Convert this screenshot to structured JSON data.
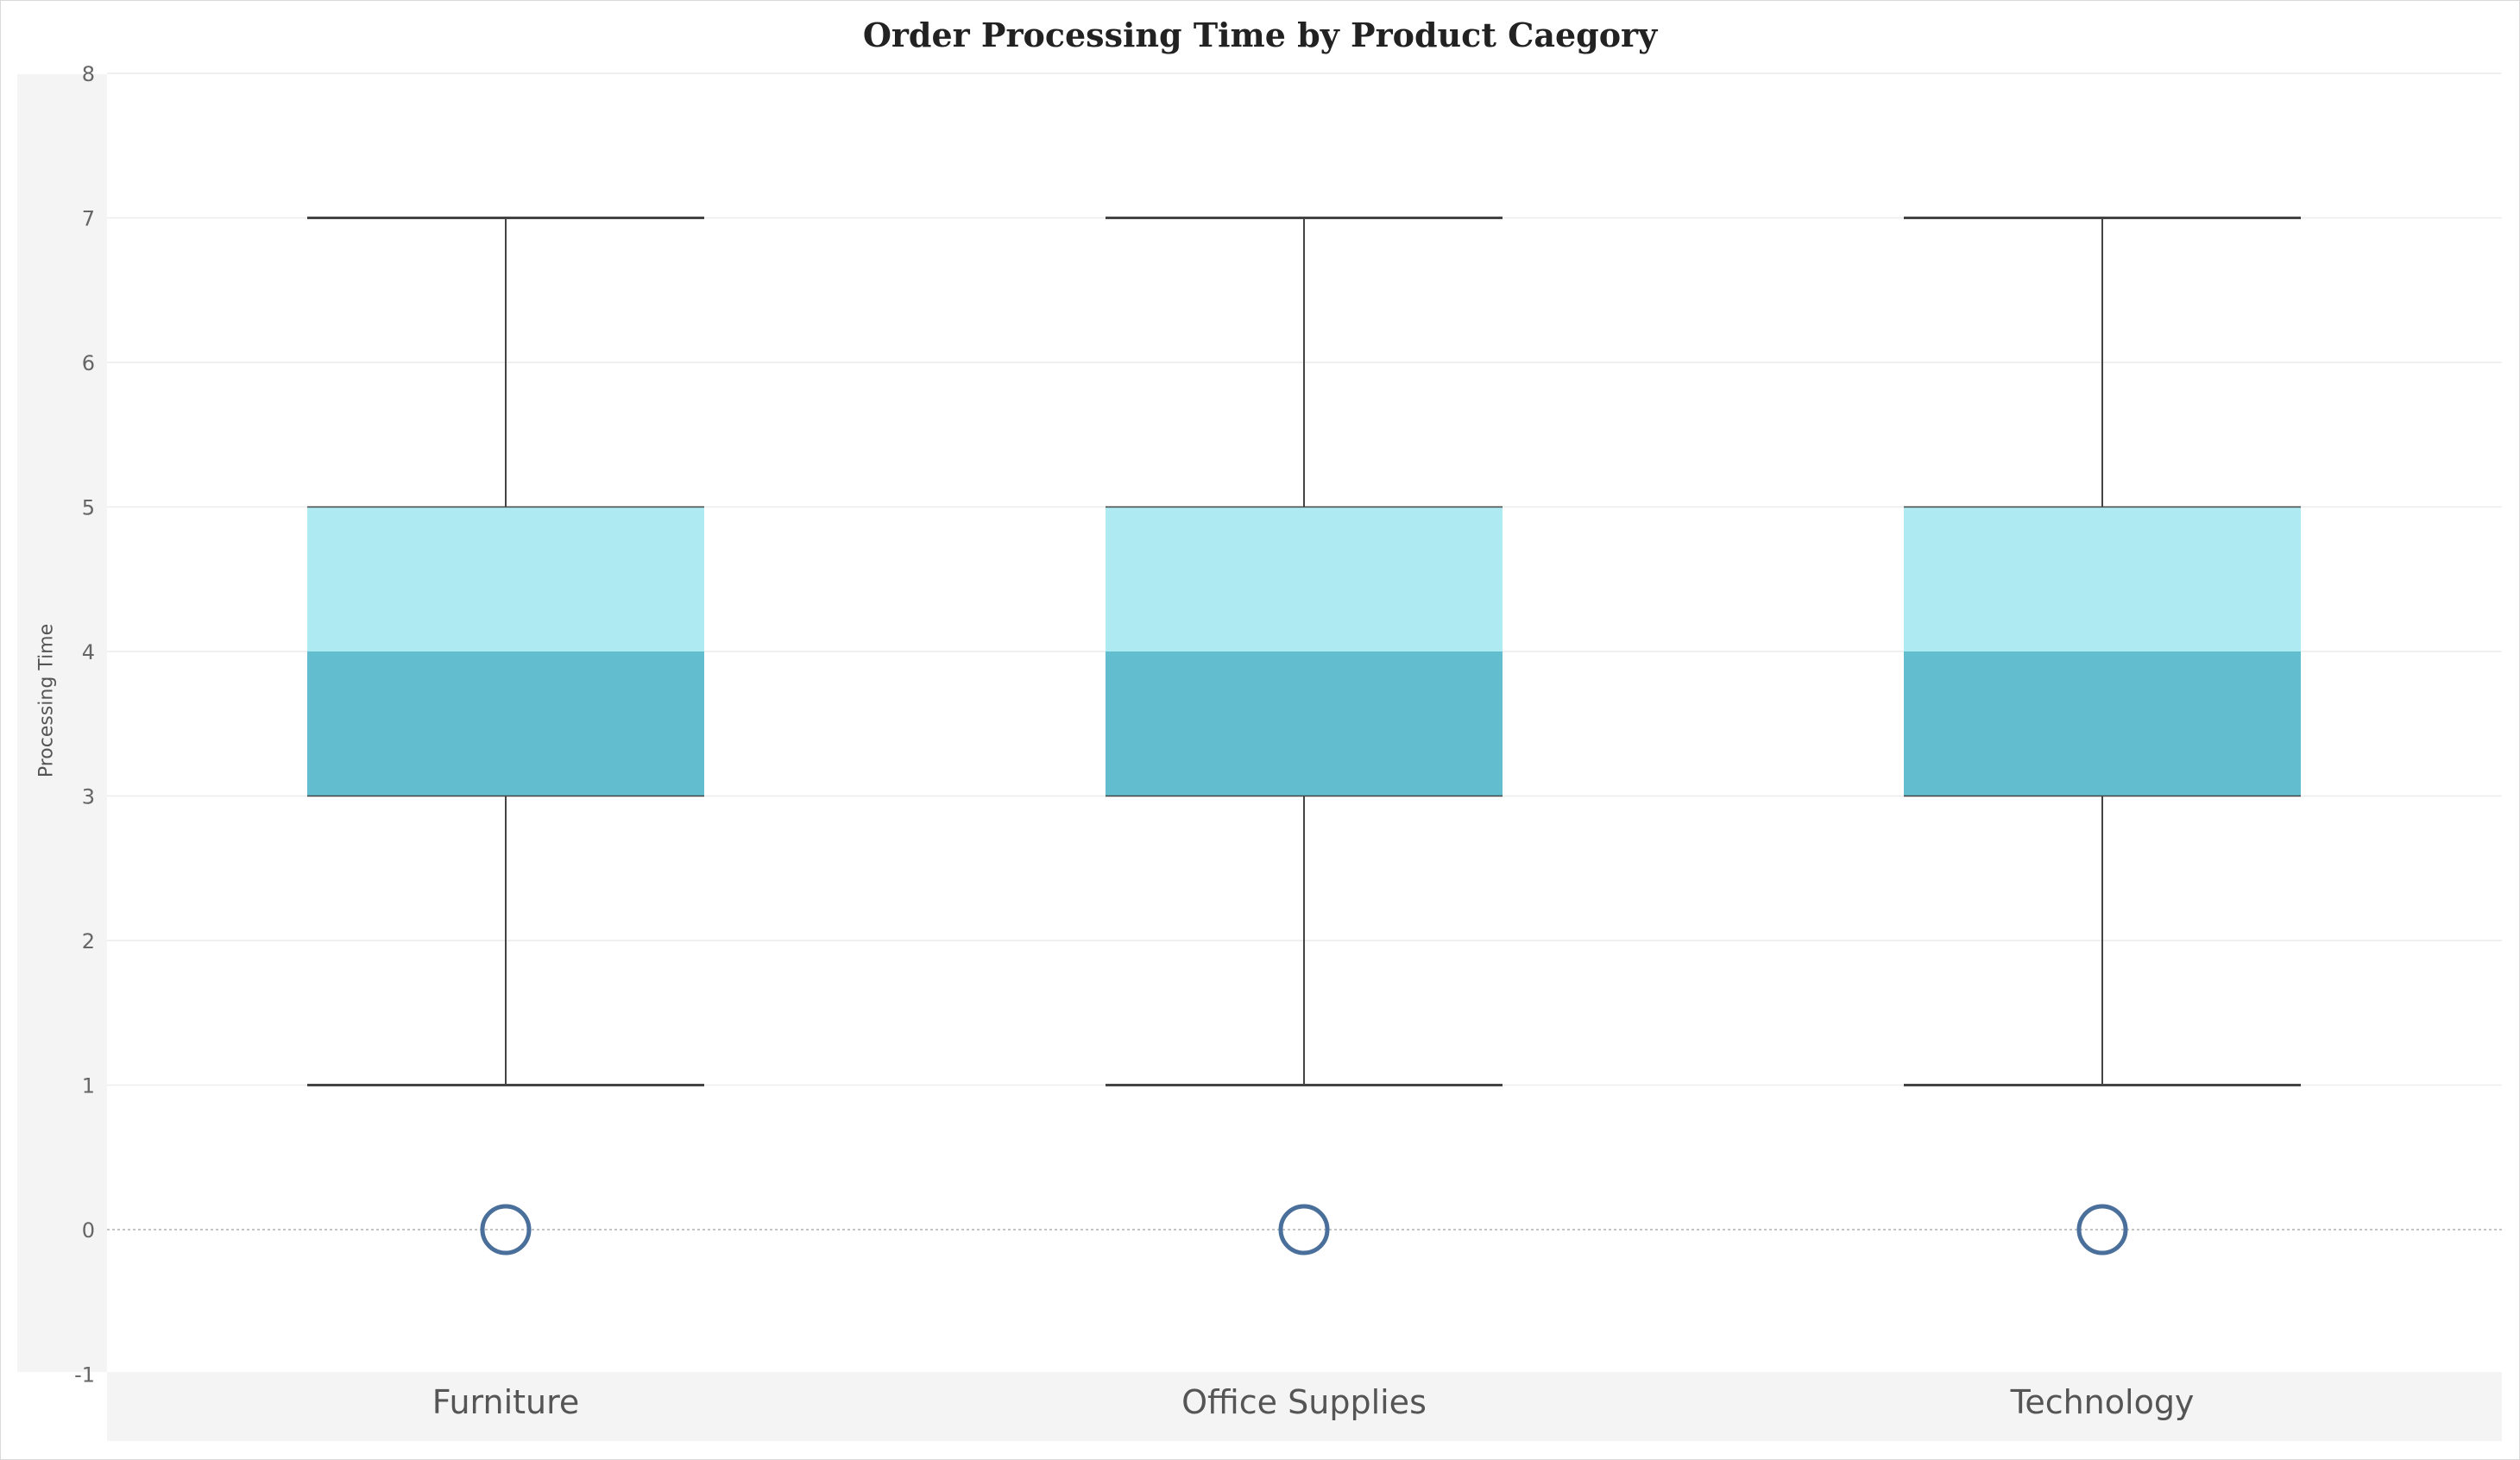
{
  "chart_data": {
    "type": "box",
    "title": "Order Processing Time by Product Caegory",
    "xlabel": "",
    "ylabel": "Processing Time",
    "ylim": [
      -1,
      8
    ],
    "yticks": [
      -1,
      0,
      1,
      2,
      3,
      4,
      5,
      6,
      7,
      8
    ],
    "grid": true,
    "categories": [
      "Furniture",
      "Office Supplies",
      "Technology"
    ],
    "boxes": [
      {
        "category": "Furniture",
        "whisker_low": 1,
        "q1": 3,
        "median": 4,
        "q3": 5,
        "whisker_high": 7,
        "outliers": [
          0
        ]
      },
      {
        "category": "Office Supplies",
        "whisker_low": 1,
        "q1": 3,
        "median": 4,
        "q3": 5,
        "whisker_high": 7,
        "outliers": [
          0
        ]
      },
      {
        "category": "Technology",
        "whisker_low": 1,
        "q1": 3,
        "median": 4,
        "q3": 5,
        "whisker_high": 7,
        "outliers": [
          0
        ]
      }
    ],
    "colors": {
      "upper_box": "#aeeaf2",
      "lower_box": "#62bdcf",
      "whisker": "#444444",
      "outlier": "#4a6f9a",
      "grid": "#ececec",
      "zero_line": "#c4c4c4"
    }
  }
}
